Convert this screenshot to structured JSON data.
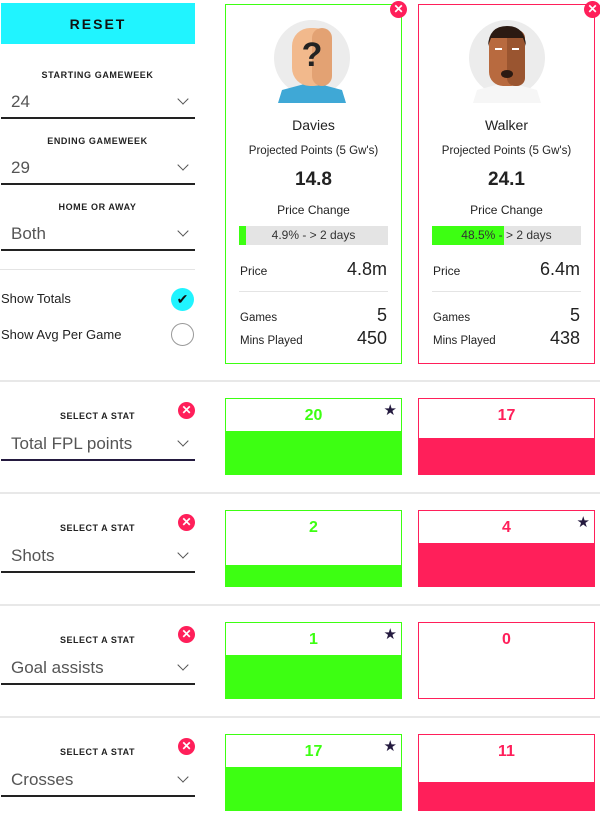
{
  "controls": {
    "reset_label": "RESET",
    "starting_gameweek": {
      "label": "STARTING GAMEWEEK",
      "value": "24"
    },
    "ending_gameweek": {
      "label": "ENDING GAMEWEEK",
      "value": "29"
    },
    "home_or_away": {
      "label": "HOME OR AWAY",
      "value": "Both"
    },
    "show_totals": {
      "label": "Show Totals",
      "checked": true
    },
    "show_avg": {
      "label": "Show Avg Per Game",
      "checked": false
    }
  },
  "colors": {
    "player1": "#3dff12",
    "player2": "#ff1f5a",
    "accent": "#20f4ff"
  },
  "players": [
    {
      "name": "Davies",
      "projected_label": "Projected Points (5 Gw's)",
      "projected": "14.8",
      "price_change_label": "Price Change",
      "price_change_text": "4.9% - > 2 days",
      "price_change_pct": 4.9,
      "price_label": "Price",
      "price": "4.8m",
      "games_label": "Games",
      "games": "5",
      "mins_label": "Mins Played",
      "mins": "450",
      "avatar": "unknown-player-icon"
    },
    {
      "name": "Walker",
      "projected_label": "Projected Points (5 Gw's)",
      "projected": "24.1",
      "price_change_label": "Price Change",
      "price_change_text": "48.5% - > 2 days",
      "price_change_pct": 48.5,
      "price_label": "Price",
      "price": "6.4m",
      "games_label": "Games",
      "games": "5",
      "mins_label": "Mins Played",
      "mins": "438",
      "avatar": "player-avatar-icon"
    }
  ],
  "stats": [
    {
      "label": "SELECT A STAT",
      "stat": "Total FPL points",
      "values": [
        20,
        17
      ]
    },
    {
      "label": "SELECT A STAT",
      "stat": "Shots",
      "values": [
        2,
        4
      ]
    },
    {
      "label": "SELECT A STAT",
      "stat": "Goal assists",
      "values": [
        1,
        0
      ]
    },
    {
      "label": "SELECT A STAT",
      "stat": "Crosses",
      "values": [
        17,
        11
      ]
    }
  ]
}
